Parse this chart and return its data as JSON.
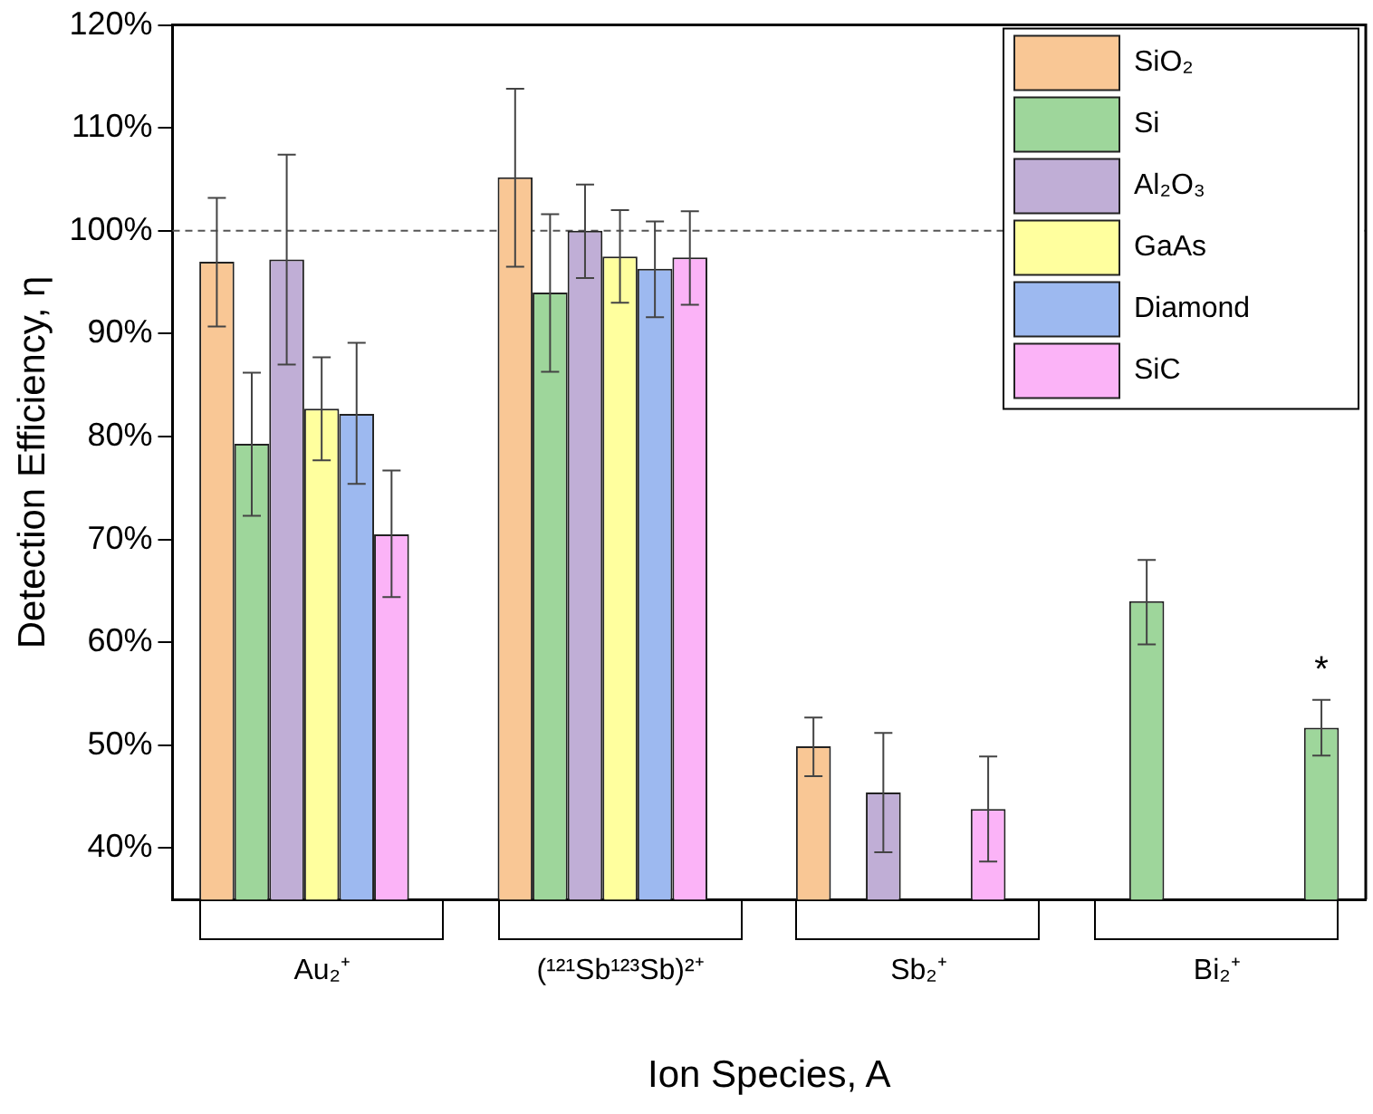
{
  "chart_data": {
    "type": "bar",
    "xlabel": "Ion Species, A",
    "ylabel": "Detection Efficiency, η",
    "categories": [
      "Au₂⁺",
      "(¹²¹Sb¹²³Sb)²⁺",
      "Sb₂⁺",
      "Bi₂⁺"
    ],
    "series": [
      {
        "name": "SiO₂",
        "color": "#f9c795",
        "values": [
          97.0,
          105.2,
          49.9,
          null
        ],
        "errors": [
          [
            90.7,
            103.2
          ],
          [
            96.5,
            113.8
          ],
          [
            47.0,
            52.7
          ],
          null
        ]
      },
      {
        "name": "Si",
        "color": "#9ed69b",
        "values": [
          79.3,
          94.0,
          null,
          64.0
        ],
        "errors": [
          [
            72.3,
            86.2
          ],
          [
            86.3,
            101.6
          ],
          null,
          [
            59.8,
            68.0
          ]
        ]
      },
      {
        "name": "Al₂O₃",
        "color": "#c0aed6",
        "values": [
          97.2,
          100.0,
          45.4,
          null
        ],
        "errors": [
          [
            87.0,
            107.4
          ],
          [
            95.4,
            104.5
          ],
          [
            39.6,
            51.2
          ],
          null
        ]
      },
      {
        "name": "GaAs",
        "color": "#ffff9e",
        "values": [
          82.7,
          97.5,
          null,
          null
        ],
        "errors": [
          [
            77.7,
            87.7
          ],
          [
            93.0,
            102.0
          ],
          null,
          null
        ]
      },
      {
        "name": "Diamond",
        "color": "#9db9f0",
        "values": [
          82.2,
          96.3,
          null,
          null
        ],
        "errors": [
          [
            75.4,
            89.1
          ],
          [
            91.6,
            100.9
          ],
          null,
          null
        ]
      },
      {
        "name": "SiC",
        "color": "#fbb3f7",
        "values": [
          70.5,
          97.4,
          43.8,
          null
        ],
        "errors": [
          [
            64.4,
            76.7
          ],
          [
            92.8,
            101.9
          ],
          [
            38.7,
            48.9
          ],
          null
        ]
      },
      {
        "color": "#9ed69b",
        "values": [
          null,
          null,
          null,
          51.7
        ],
        "errors": [
          null,
          null,
          null,
          [
            49.0,
            54.4
          ]
        ]
      }
    ],
    "ylim": [
      35,
      120
    ],
    "yticks": [
      {
        "value": 40,
        "label": "40%"
      },
      {
        "value": 50,
        "label": "50%"
      },
      {
        "value": 60,
        "label": "60%"
      },
      {
        "value": 70,
        "label": "70%"
      },
      {
        "value": 80,
        "label": "80%"
      },
      {
        "value": 90,
        "label": "90%"
      },
      {
        "value": 100,
        "label": "100%"
      },
      {
        "value": 110,
        "label": "110%"
      },
      {
        "value": 120,
        "label": "120%"
      }
    ],
    "ref_lines": [
      {
        "axis": "y",
        "value": 100,
        "color": "#555555",
        "line_style": "dashed"
      }
    ],
    "annotations": [
      "*"
    ],
    "legend": "top right",
    "grid": false
  }
}
